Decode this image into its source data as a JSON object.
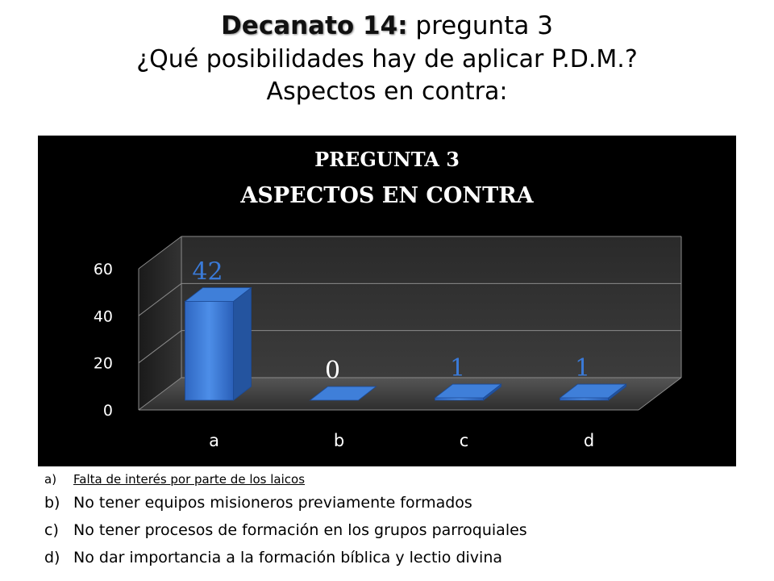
{
  "header": {
    "bold_part": "Decanato 14:",
    "normal_part": " pregunta 3",
    "line2": "¿Qué posibilidades hay de aplicar P.D.M.?",
    "line3": "Aspectos en contra:"
  },
  "chart_data": {
    "type": "bar",
    "title": "PREGUNTA 3",
    "subtitle": "ASPECTOS EN CONTRA",
    "categories": [
      "a",
      "b",
      "c",
      "d"
    ],
    "values": [
      42,
      0,
      1,
      1
    ],
    "data_labels": [
      "42",
      "0",
      "1",
      "1"
    ],
    "ylim": [
      0,
      60
    ],
    "yticks": [
      "0",
      "20",
      "40",
      "60"
    ],
    "grid": true,
    "three_d": true,
    "colors": {
      "bar": "#3a7ad8",
      "background": "#000000",
      "label": "#3a7ad8"
    }
  },
  "legend": [
    {
      "letter": "a)",
      "text": "Falta de interés por parte de los laicos"
    },
    {
      "letter": "b)",
      "text": "No tener equipos misioneros previamente formados"
    },
    {
      "letter": "c)",
      "text": "No tener procesos de formación en los grupos parroquiales"
    },
    {
      "letter": "d)",
      "text": "No dar importancia a la formación bíblica y lectio divina"
    }
  ]
}
